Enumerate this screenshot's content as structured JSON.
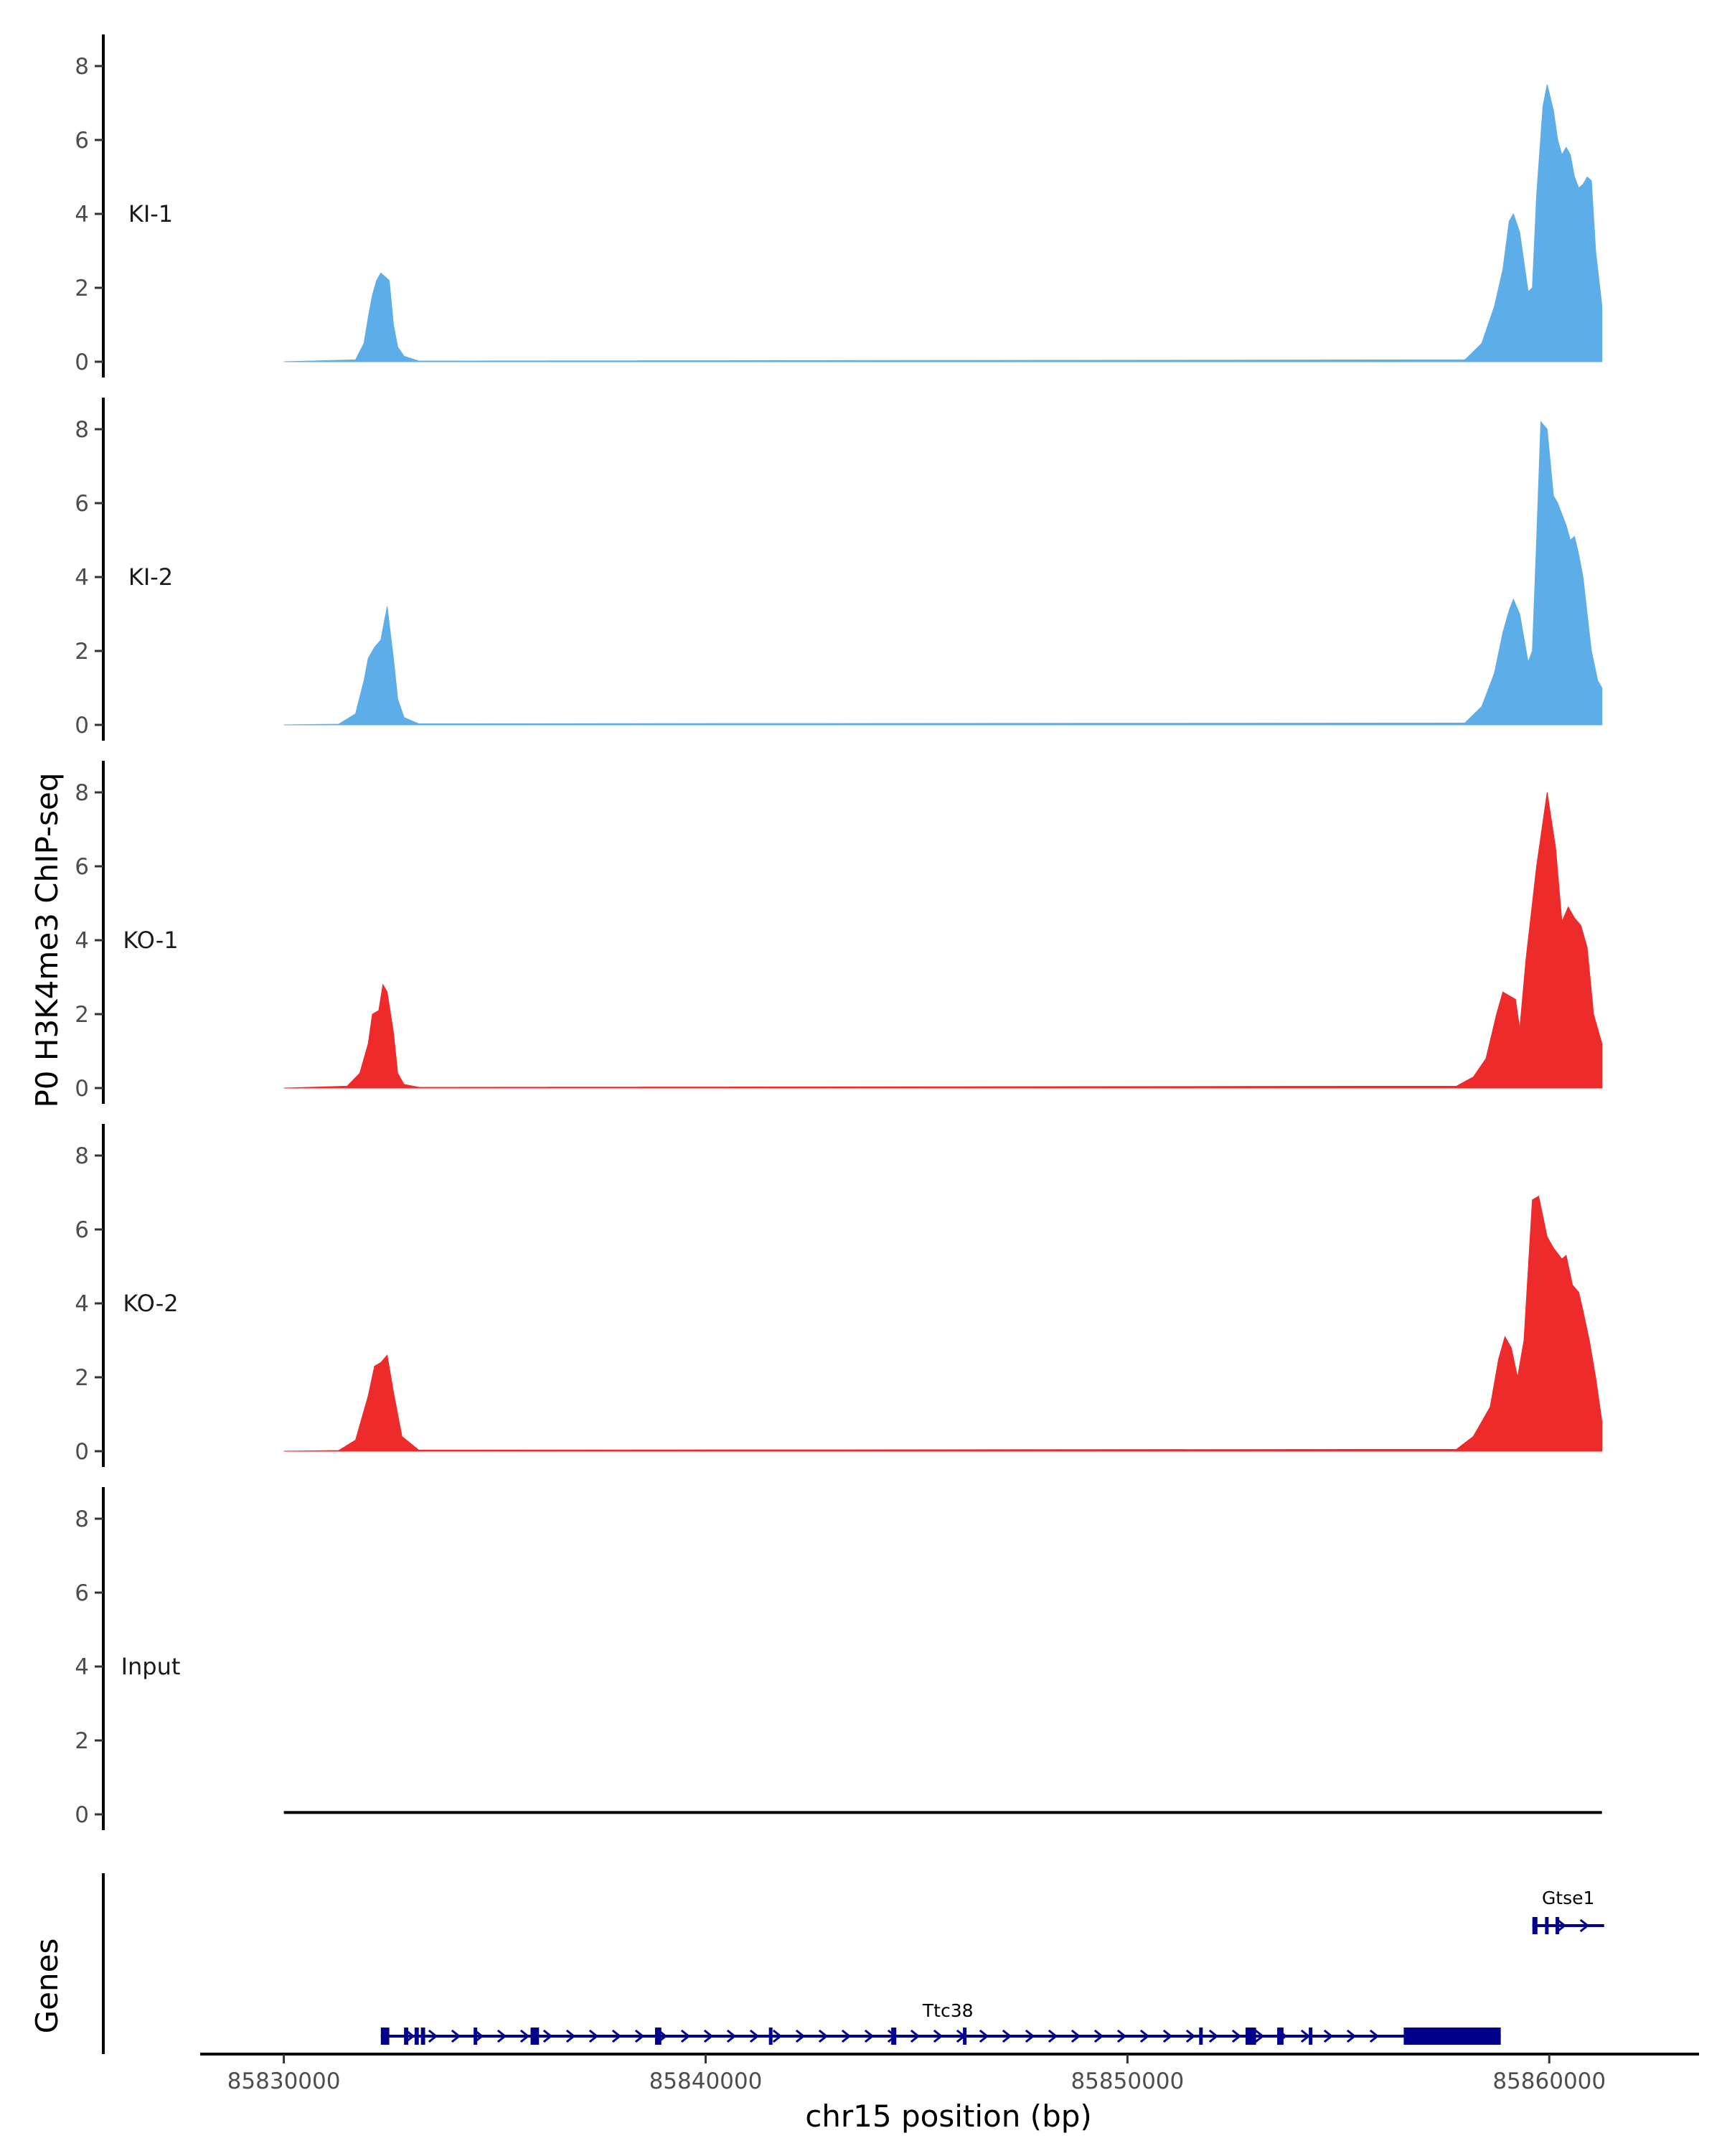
{
  "chart_data": {
    "type": "area",
    "ylabel": "P0 H3K4me3 ChIP-seq",
    "xlabel": "chr15 position (bp)",
    "genes_label": "Genes",
    "xlim": [
      85828000,
      85863500
    ],
    "ylim": [
      0,
      8.7
    ],
    "x_ticks": [
      85830000,
      85840000,
      85850000,
      85860000
    ],
    "x_tick_labels": [
      "85830000",
      "85840000",
      "85850000",
      "85860000"
    ],
    "y_ticks": [
      0,
      2,
      4,
      6,
      8
    ],
    "y_tick_labels": [
      "0",
      "2",
      "4",
      "6",
      "8"
    ],
    "grid": false,
    "colors": {
      "KI": "#5dade9",
      "KO": "#ee2b2b",
      "Input": "#000000",
      "genes": "#00008b"
    },
    "tracks": [
      {
        "name": "KI-1",
        "color": "#5dade9",
        "x": [
          85830000,
          85831700,
          85831900,
          85832000,
          85832100,
          85832200,
          85832300,
          85832400,
          85832500,
          85832600,
          85832700,
          85832850,
          85833200,
          85858000,
          85858400,
          85858700,
          85858900,
          85859050,
          85859150,
          85859300,
          85859500,
          85859600,
          85859700,
          85859850,
          85859950,
          85860100,
          85860200,
          85860300,
          85860400,
          85860500,
          85860600,
          85860700,
          85860800,
          85860900,
          85861000,
          85861100,
          85861250,
          85861250
        ],
        "y": [
          0,
          0.05,
          0.5,
          1.2,
          1.8,
          2.2,
          2.4,
          2.3,
          2.2,
          1.0,
          0.4,
          0.15,
          0.02,
          0.05,
          0.5,
          1.5,
          2.5,
          3.8,
          4.0,
          3.5,
          1.9,
          2.0,
          4.5,
          6.9,
          7.5,
          6.8,
          6.0,
          5.6,
          5.8,
          5.6,
          5.0,
          4.7,
          4.8,
          5.0,
          4.9,
          3.0,
          1.5,
          0
        ]
      },
      {
        "name": "KI-2",
        "color": "#5dade9",
        "x": [
          85830000,
          85831300,
          85831700,
          85831900,
          85832000,
          85832150,
          85832300,
          85832450,
          85832600,
          85832700,
          85832850,
          85833200,
          85858000,
          85858400,
          85858700,
          85858900,
          85859050,
          85859150,
          85859300,
          85859500,
          85859600,
          85859700,
          85859800,
          85859950,
          85860100,
          85860200,
          85860400,
          85860500,
          85860600,
          85860700,
          85860800,
          85860900,
          85861000,
          85861150,
          85861250,
          85861250
        ],
        "y": [
          0,
          0.02,
          0.3,
          1.2,
          1.8,
          2.1,
          2.3,
          3.2,
          1.8,
          0.7,
          0.2,
          0.03,
          0.05,
          0.5,
          1.4,
          2.5,
          3.1,
          3.4,
          3.0,
          1.7,
          2.0,
          5.0,
          8.2,
          8.0,
          6.2,
          6.0,
          5.4,
          5.0,
          5.1,
          4.6,
          4.0,
          3.0,
          2.0,
          1.2,
          1.0,
          0
        ]
      },
      {
        "name": "KO-1",
        "color": "#ee2b2b",
        "x": [
          85830000,
          85831500,
          85831800,
          85832000,
          85832100,
          85832250,
          85832350,
          85832450,
          85832600,
          85832700,
          85832850,
          85833200,
          85857800,
          85858200,
          85858500,
          85858750,
          85858900,
          85859050,
          85859200,
          85859300,
          85859450,
          85859700,
          85859950,
          85860150,
          85860300,
          85860450,
          85860600,
          85860750,
          85860900,
          85861050,
          85861250,
          85861250
        ],
        "y": [
          0,
          0.05,
          0.4,
          1.2,
          2.0,
          2.1,
          2.8,
          2.6,
          1.5,
          0.4,
          0.1,
          0.02,
          0.05,
          0.3,
          0.8,
          2.0,
          2.6,
          2.5,
          2.4,
          1.6,
          3.5,
          6.0,
          8.0,
          6.5,
          4.5,
          4.9,
          4.6,
          4.4,
          3.8,
          2.0,
          1.2,
          0
        ]
      },
      {
        "name": "KO-2",
        "color": "#ee2b2b",
        "x": [
          85830000,
          85831300,
          85831700,
          85832000,
          85832150,
          85832300,
          85832450,
          85832600,
          85832800,
          85833200,
          85857800,
          85858200,
          85858600,
          85858800,
          85858950,
          85859100,
          85859250,
          85859400,
          85859600,
          85859750,
          85859950,
          85860100,
          85860300,
          85860400,
          85860550,
          85860700,
          85860800,
          85860950,
          85861100,
          85861250,
          85861250
        ],
        "y": [
          0,
          0.02,
          0.3,
          1.5,
          2.3,
          2.4,
          2.6,
          1.6,
          0.4,
          0.03,
          0.05,
          0.4,
          1.2,
          2.5,
          3.1,
          2.8,
          2.0,
          3.0,
          6.8,
          6.9,
          5.8,
          5.5,
          5.2,
          5.3,
          4.5,
          4.3,
          3.8,
          3.0,
          2.0,
          0.8,
          0
        ]
      },
      {
        "name": "Input",
        "color": "#000000",
        "x": [
          85830000,
          85835000,
          85840000,
          85845000,
          85850000,
          85855000,
          85861250
        ],
        "y": [
          0.05,
          0.05,
          0.05,
          0.05,
          0.05,
          0.05,
          0.05
        ]
      }
    ],
    "genes": [
      {
        "name": "Gtse1",
        "start": 85859600,
        "end": 85861300,
        "exons": [
          [
            85859600,
            85859720
          ],
          [
            85859900,
            85859960
          ],
          [
            85860150,
            85860230
          ]
        ],
        "utr_block": []
      },
      {
        "name": "Ttc38",
        "start": 85832300,
        "end": 85858850,
        "exons": [
          [
            85832300,
            85832500
          ],
          [
            85832850,
            85832950
          ],
          [
            85833100,
            85833200
          ],
          [
            85833250,
            85833350
          ],
          [
            85834500,
            85834560
          ],
          [
            85835850,
            85836050
          ],
          [
            85838800,
            85838950
          ],
          [
            85841500,
            85841560
          ],
          [
            85844400,
            85844520
          ],
          [
            85846100,
            85846160
          ],
          [
            85851700,
            85851760
          ],
          [
            85852800,
            85853050
          ],
          [
            85853550,
            85853700
          ],
          [
            85854300,
            85854360
          ]
        ],
        "utr_block": [
          85856550,
          85858850
        ]
      }
    ]
  }
}
